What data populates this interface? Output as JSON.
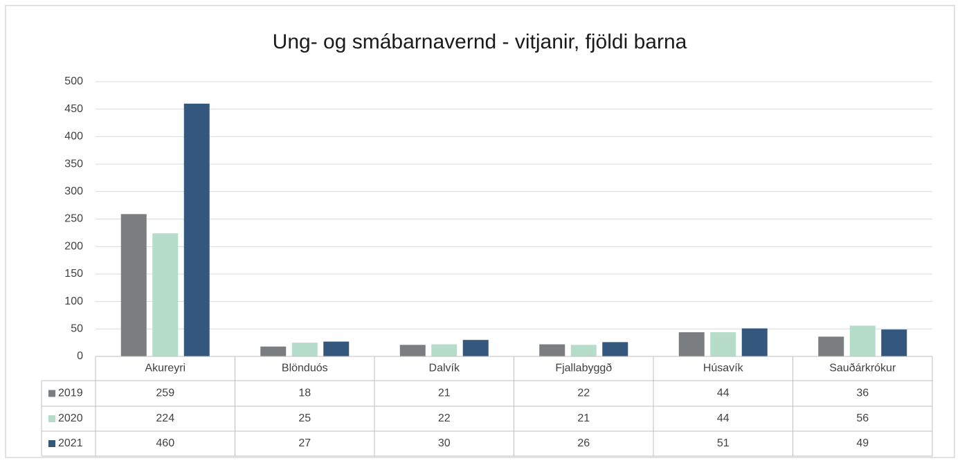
{
  "chart_data": {
    "type": "bar",
    "title": "Ung- og smábarnavernd - vitjanir, fjöldi barna",
    "categories": [
      "Akureyri",
      "Blönduós",
      "Dalvík",
      "Fjallabyggð",
      "Húsavík",
      "Sauðárkrókur"
    ],
    "series": [
      {
        "name": "2019",
        "color": "#7a7e81",
        "values": [
          259,
          18,
          21,
          22,
          44,
          36
        ]
      },
      {
        "name": "2020",
        "color": "#b6dcca",
        "values": [
          224,
          25,
          22,
          21,
          44,
          56
        ]
      },
      {
        "name": "2021",
        "color": "#34577e",
        "values": [
          460,
          27,
          30,
          26,
          51,
          49
        ]
      }
    ],
    "ylim": [
      0,
      500
    ],
    "yticks": [
      0,
      50,
      100,
      150,
      200,
      250,
      300,
      350,
      400,
      450,
      500
    ],
    "grid": true
  }
}
